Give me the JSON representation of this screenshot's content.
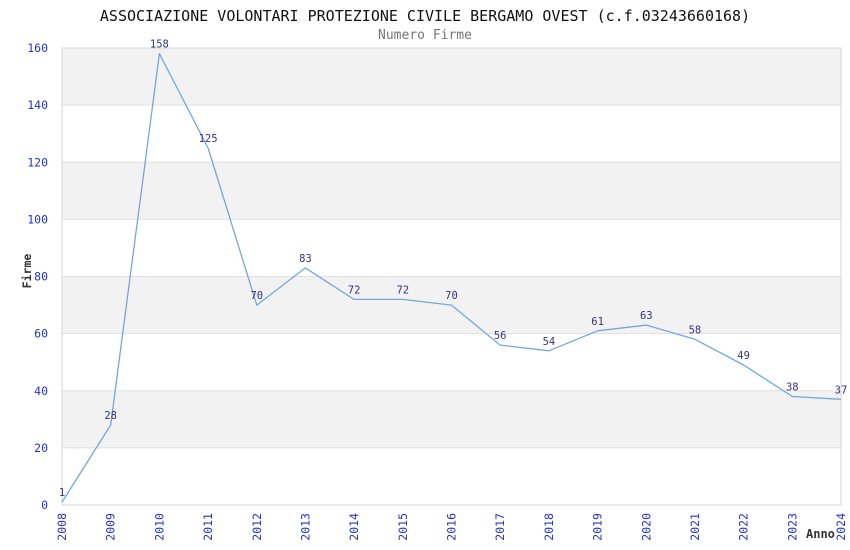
{
  "chart_data": {
    "type": "line",
    "title": "ASSOCIAZIONE VOLONTARI PROTEZIONE CIVILE BERGAMO OVEST (c.f.03243660168)",
    "subtitle": "Numero Firme",
    "xlabel": "Anno",
    "ylabel": "Firme",
    "categories": [
      "2008",
      "2009",
      "2010",
      "2011",
      "2012",
      "2013",
      "2014",
      "2015",
      "2016",
      "2017",
      "2018",
      "2019",
      "2020",
      "2021",
      "2022",
      "2023",
      "2024"
    ],
    "values": [
      1,
      28,
      158,
      125,
      70,
      83,
      72,
      72,
      70,
      56,
      54,
      61,
      63,
      58,
      49,
      38,
      37
    ],
    "ylim": [
      0,
      160
    ],
    "yticks": [
      0,
      20,
      40,
      60,
      80,
      100,
      120,
      140,
      160
    ],
    "grid": true,
    "legend": "none",
    "band_fill": "alternating-horizontal",
    "data_labels": true,
    "colors": {
      "line": "#73a8dd",
      "data_label": "#333380",
      "tick_label": "#2233cc",
      "title": "#111111",
      "subtitle": "#767676",
      "axis_title": "#333333",
      "band": "#f2f2f2",
      "gridline": "#e0e0e0",
      "border": "#d6d6d6"
    }
  }
}
